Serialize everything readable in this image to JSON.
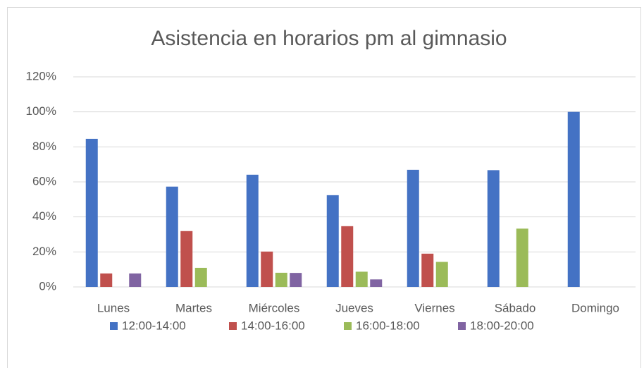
{
  "chart_data": {
    "type": "bar",
    "title": "Asistencia en horarios pm al gimnasio",
    "categories": [
      "Lunes",
      "Martes",
      "Miércoles",
      "Jueves",
      "Viernes",
      "Sábado",
      "Domingo"
    ],
    "series": [
      {
        "name": "12:00-14:00",
        "color": "#4472c4",
        "values": [
          84.6,
          57.3,
          64.1,
          52.4,
          66.9,
          66.7,
          100
        ]
      },
      {
        "name": "14:00-16:00",
        "color": "#c0504d",
        "values": [
          7.7,
          31.9,
          20.2,
          34.7,
          19,
          0,
          0
        ]
      },
      {
        "name": "16:00-18:00",
        "color": "#9bbb59",
        "values": [
          0,
          10.9,
          8.1,
          8.7,
          14.3,
          33.3,
          0
        ]
      },
      {
        "name": "18:00-20:00",
        "color": "#8064a2",
        "values": [
          7.7,
          0,
          8,
          4.3,
          0,
          0,
          0
        ]
      }
    ],
    "ylim": [
      0,
      120
    ],
    "yticks": [
      {
        "value": 0,
        "label": "0%"
      },
      {
        "value": 20,
        "label": "20%"
      },
      {
        "value": 40,
        "label": "40%"
      },
      {
        "value": 60,
        "label": "60%"
      },
      {
        "value": 80,
        "label": "80%"
      },
      {
        "value": 100,
        "label": "100%"
      },
      {
        "value": 120,
        "label": "120%"
      }
    ],
    "grid": true,
    "legend": "bottom"
  }
}
